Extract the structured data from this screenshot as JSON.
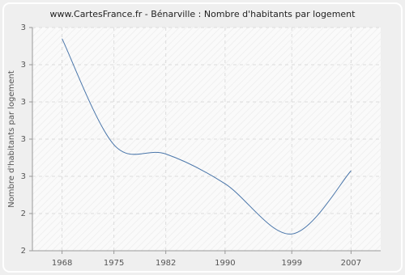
{
  "chart_data": {
    "type": "line",
    "title": "www.CartesFrance.fr - Bénarville : Nombre d'habitants par logement",
    "y_label": "Nombre d'habitants par logement",
    "x": [
      1968,
      1975,
      1982,
      1990,
      1999,
      2007
    ],
    "values": [
      3.24,
      2.67,
      2.62,
      2.46,
      2.19,
      2.53
    ],
    "color": "#4a76aa",
    "xlim": [
      1964,
      2011
    ],
    "xticks": [
      1968,
      1975,
      1982,
      1990,
      1999,
      2007
    ],
    "ylim": [
      2.1,
      3.3
    ],
    "yticks": [
      {
        "value": 2.1,
        "label": "2"
      },
      {
        "value": 2.3,
        "label": "2"
      },
      {
        "value": 2.5,
        "label": "3"
      },
      {
        "value": 2.7,
        "label": "3"
      },
      {
        "value": 2.9,
        "label": "3"
      },
      {
        "value": 3.1,
        "label": "3"
      },
      {
        "value": 3.3,
        "label": "3"
      }
    ],
    "grid": true
  }
}
